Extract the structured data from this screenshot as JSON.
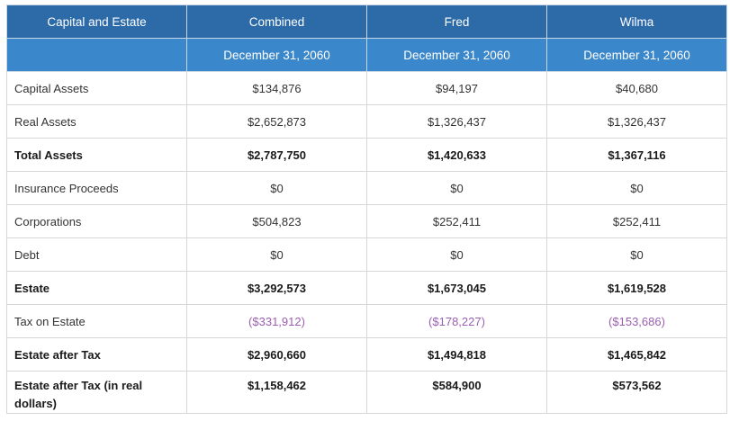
{
  "table": {
    "headers": [
      "Capital and Estate",
      "Combined",
      "Fred",
      "Wilma"
    ],
    "subheaders": [
      "",
      "December 31, 2060",
      "December 31, 2060",
      "December 31, 2060"
    ],
    "rows": [
      {
        "label": "Capital Assets",
        "values": [
          "$134,876",
          "$94,197",
          "$40,680"
        ],
        "bold": false,
        "negative": false
      },
      {
        "label": "Real Assets",
        "values": [
          "$2,652,873",
          "$1,326,437",
          "$1,326,437"
        ],
        "bold": false,
        "negative": false
      },
      {
        "label": "Total Assets",
        "values": [
          "$2,787,750",
          "$1,420,633",
          "$1,367,116"
        ],
        "bold": true,
        "negative": false
      },
      {
        "label": "Insurance Proceeds",
        "values": [
          "$0",
          "$0",
          "$0"
        ],
        "bold": false,
        "negative": false
      },
      {
        "label": "Corporations",
        "values": [
          "$504,823",
          "$252,411",
          "$252,411"
        ],
        "bold": false,
        "negative": false
      },
      {
        "label": "Debt",
        "values": [
          "$0",
          "$0",
          "$0"
        ],
        "bold": false,
        "negative": false
      },
      {
        "label": "Estate",
        "values": [
          "$3,292,573",
          "$1,673,045",
          "$1,619,528"
        ],
        "bold": true,
        "negative": false
      },
      {
        "label": "Tax on Estate",
        "values": [
          "($331,912)",
          "($178,227)",
          "($153,686)"
        ],
        "bold": false,
        "negative": true
      },
      {
        "label": "Estate after Tax",
        "values": [
          "$2,960,660",
          "$1,494,818",
          "$1,465,842"
        ],
        "bold": true,
        "negative": false
      },
      {
        "label": "Estate after Tax (in real dollars)",
        "values": [
          "$1,158,462",
          "$584,900",
          "$573,562"
        ],
        "bold": true,
        "negative": false
      }
    ]
  },
  "colors": {
    "header_dark": "#2c6aa8",
    "header_light": "#3b87cc",
    "negative_text": "#9a5fb0"
  }
}
